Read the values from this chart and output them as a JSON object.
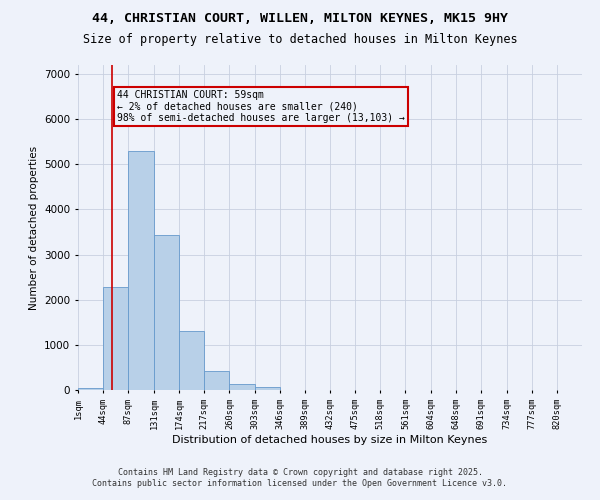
{
  "title": "44, CHRISTIAN COURT, WILLEN, MILTON KEYNES, MK15 9HY",
  "subtitle": "Size of property relative to detached houses in Milton Keynes",
  "xlabel": "Distribution of detached houses by size in Milton Keynes",
  "ylabel": "Number of detached properties",
  "footer_line1": "Contains HM Land Registry data © Crown copyright and database right 2025.",
  "footer_line2": "Contains public sector information licensed under the Open Government Licence v3.0.",
  "annotation_title": "44 CHRISTIAN COURT: 59sqm",
  "annotation_line1": "← 2% of detached houses are smaller (240)",
  "annotation_line2": "98% of semi-detached houses are larger (13,103) →",
  "property_size": 59,
  "bar_edges": [
    1,
    44,
    87,
    131,
    174,
    217,
    260,
    303,
    346,
    389,
    432,
    475,
    518,
    561,
    604,
    648,
    691,
    734,
    777,
    820,
    863
  ],
  "bar_heights": [
    50,
    2280,
    5300,
    3430,
    1300,
    430,
    140,
    70,
    0,
    0,
    0,
    0,
    0,
    0,
    0,
    0,
    0,
    0,
    0,
    0
  ],
  "bar_color": "#b8d0e8",
  "bar_edge_color": "#6699cc",
  "red_line_color": "#cc0000",
  "annotation_box_color": "#cc0000",
  "background_color": "#eef2fa",
  "grid_color": "#c8d0e0",
  "ylim": [
    0,
    7200
  ],
  "yticks": [
    0,
    1000,
    2000,
    3000,
    4000,
    5000,
    6000,
    7000
  ]
}
